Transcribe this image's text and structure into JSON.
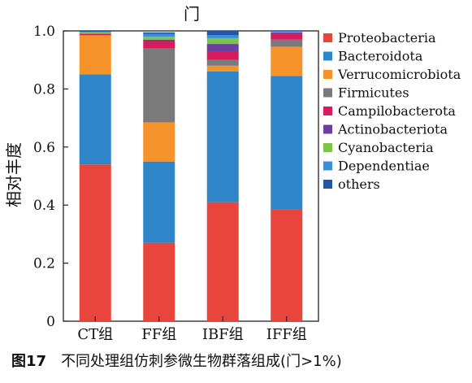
{
  "chart_data": {
    "type": "bar",
    "stacked": true,
    "title": "门",
    "xlabel": "",
    "ylabel": "相对丰度",
    "ylim": [
      0,
      1.0
    ],
    "yticks": [
      "0",
      "0.2",
      "0.4",
      "0.6",
      "0.8",
      "1.0"
    ],
    "categories": [
      "CT组",
      "FF组",
      "IBF组",
      "IFF组"
    ],
    "legend_position": "right",
    "grid": false,
    "series": [
      {
        "name": "Proteobacteria",
        "color": "#e8453c",
        "values": [
          0.54,
          0.27,
          0.41,
          0.385
        ]
      },
      {
        "name": "Bacteroidota",
        "color": "#2e85c8",
        "values": [
          0.31,
          0.28,
          0.45,
          0.46
        ]
      },
      {
        "name": "Verrucomicrobiota",
        "color": "#f5922a",
        "values": [
          0.135,
          0.135,
          0.02,
          0.1
        ]
      },
      {
        "name": "Firmicutes",
        "color": "#7a7a7a",
        "values": [
          0.0,
          0.255,
          0.02,
          0.025
        ]
      },
      {
        "name": "Campilobacterota",
        "color": "#d81b5c",
        "values": [
          0.005,
          0.025,
          0.03,
          0.02
        ]
      },
      {
        "name": "Actinobacteriota",
        "color": "#6a3fa0",
        "values": [
          0.0,
          0.005,
          0.025,
          0.005
        ]
      },
      {
        "name": "Cyanobacteria",
        "color": "#7dc54a",
        "values": [
          0.005,
          0.01,
          0.02,
          0.002
        ]
      },
      {
        "name": "Dependentiae",
        "color": "#3b8ed8",
        "values": [
          0.002,
          0.01,
          0.01,
          0.002
        ]
      },
      {
        "name": "others",
        "color": "#2456a8",
        "values": [
          0.003,
          0.005,
          0.015,
          0.001
        ]
      }
    ]
  },
  "caption": {
    "figure_number": "图17",
    "text": "不同处理组仿刺参微生物群落组成(门>1%)"
  }
}
